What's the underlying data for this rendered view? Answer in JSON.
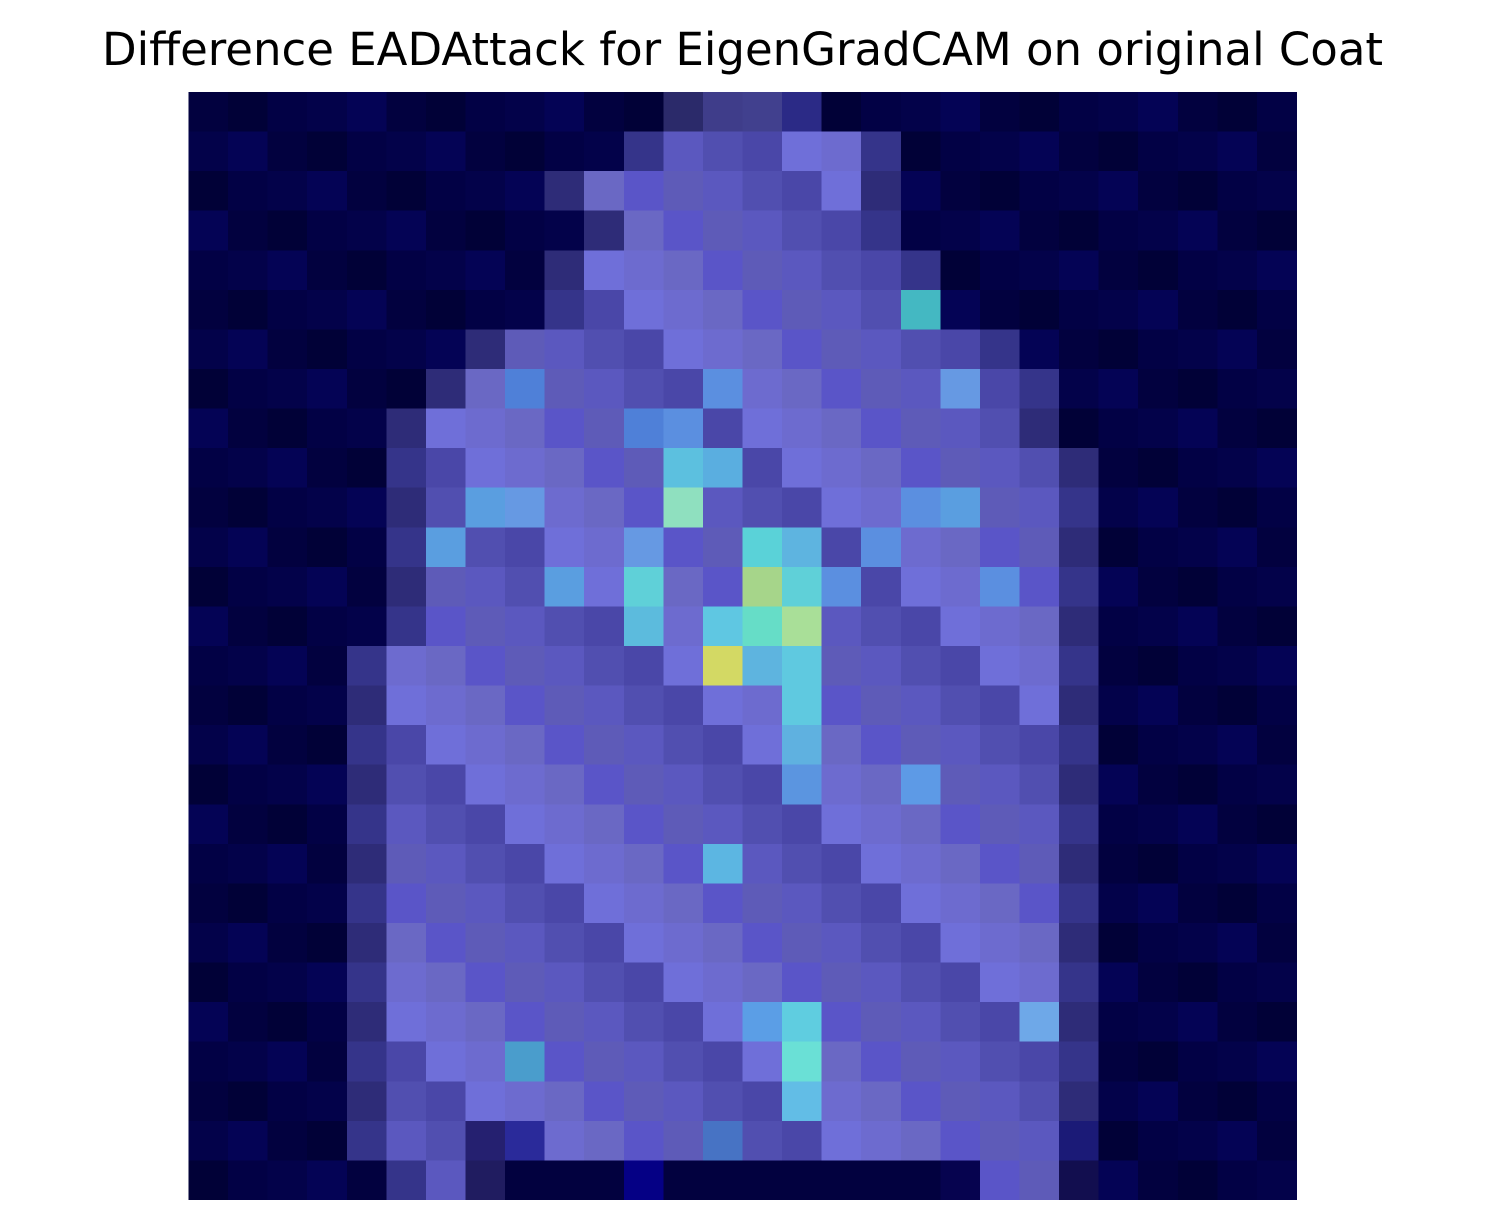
{
  "figure": {
    "title": "Difference EADAttack for EigenGradCAM on original Coat"
  },
  "image": {
    "description": "Low-resolution 28x28 pixelated coat silhouette overlaid with a blue-to-yellow heatmap",
    "grid_size": [
      28,
      28
    ],
    "background_color": "#02013f",
    "coat_base_color": "#6a68c4",
    "hotspot_colors": {
      "cyan": "#5fd0d8",
      "teal": "#66ddc7",
      "yellow_green": "#a6d58a",
      "yellow": "#d3d964"
    }
  }
}
